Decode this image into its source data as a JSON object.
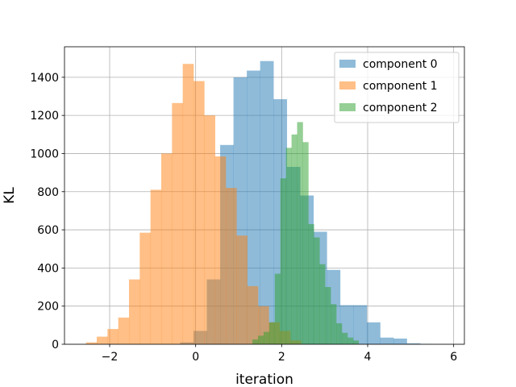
{
  "chart_data": {
    "type": "histogram",
    "xlabel": "iteration",
    "ylabel": "KL",
    "xlim": [
      -3.05,
      6.25
    ],
    "ylim": [
      0,
      1560
    ],
    "xticks": [
      -2,
      0,
      2,
      4,
      6
    ],
    "xtick_labels": [
      "−2",
      "0",
      "2",
      "4",
      "6"
    ],
    "yticks": [
      0,
      200,
      400,
      600,
      800,
      1000,
      1200,
      1400
    ],
    "ytick_labels": [
      "0",
      "200",
      "400",
      "600",
      "800",
      "1000",
      "1200",
      "1400"
    ],
    "grid": true,
    "legend_position": "top-right",
    "series": [
      {
        "name": "component 0",
        "color": "#1f77b4",
        "opacity": 0.5,
        "bins": [
          [
            -0.36,
            -0.05,
            10
          ],
          [
            -0.05,
            0.26,
            70
          ],
          [
            0.26,
            0.57,
            340
          ],
          [
            0.57,
            0.88,
            1045
          ],
          [
            0.88,
            1.19,
            1400
          ],
          [
            1.19,
            1.5,
            1435
          ],
          [
            1.5,
            1.81,
            1485
          ],
          [
            1.81,
            2.12,
            1285
          ],
          [
            2.12,
            2.43,
            930
          ],
          [
            2.43,
            2.74,
            780
          ],
          [
            2.74,
            3.05,
            590
          ],
          [
            3.05,
            3.36,
            390
          ],
          [
            3.36,
            3.67,
            205
          ],
          [
            3.67,
            3.98,
            205
          ],
          [
            3.98,
            4.29,
            115
          ],
          [
            4.29,
            4.6,
            35
          ],
          [
            4.6,
            4.91,
            30
          ],
          [
            4.91,
            5.22,
            5
          ],
          [
            5.22,
            5.53,
            2
          ]
        ]
      },
      {
        "name": "component 1",
        "color": "#ff7f0e",
        "opacity": 0.5,
        "bins": [
          [
            -2.55,
            -2.3,
            10
          ],
          [
            -2.3,
            -2.05,
            40
          ],
          [
            -2.05,
            -1.8,
            80
          ],
          [
            -1.8,
            -1.55,
            140
          ],
          [
            -1.55,
            -1.3,
            340
          ],
          [
            -1.3,
            -1.05,
            585
          ],
          [
            -1.05,
            -0.8,
            810
          ],
          [
            -0.8,
            -0.55,
            1000
          ],
          [
            -0.55,
            -0.3,
            1265
          ],
          [
            -0.3,
            -0.05,
            1470
          ],
          [
            -0.05,
            0.2,
            1380
          ],
          [
            0.2,
            0.45,
            1200
          ],
          [
            0.45,
            0.7,
            985
          ],
          [
            0.7,
            0.95,
            820
          ],
          [
            0.95,
            1.2,
            570
          ],
          [
            1.2,
            1.45,
            305
          ],
          [
            1.45,
            1.7,
            200
          ],
          [
            1.7,
            1.95,
            115
          ],
          [
            1.95,
            2.2,
            70
          ],
          [
            2.2,
            2.45,
            20
          ]
        ]
      },
      {
        "name": "component 2",
        "color": "#2ca02c",
        "opacity": 0.5,
        "bins": [
          [
            1.32,
            1.45,
            25
          ],
          [
            1.45,
            1.58,
            45
          ],
          [
            1.58,
            1.71,
            65
          ],
          [
            1.71,
            1.84,
            115
          ],
          [
            1.84,
            1.97,
            370
          ],
          [
            1.97,
            2.1,
            870
          ],
          [
            2.1,
            2.23,
            1030
          ],
          [
            2.23,
            2.36,
            1100
          ],
          [
            2.36,
            2.49,
            1165
          ],
          [
            2.49,
            2.62,
            1060
          ],
          [
            2.62,
            2.75,
            630
          ],
          [
            2.75,
            2.88,
            560
          ],
          [
            2.88,
            3.01,
            420
          ],
          [
            3.01,
            3.14,
            300
          ],
          [
            3.14,
            3.27,
            210
          ],
          [
            3.27,
            3.4,
            110
          ],
          [
            3.4,
            3.53,
            60
          ],
          [
            3.53,
            3.66,
            35
          ],
          [
            3.66,
            3.79,
            20
          ]
        ]
      }
    ]
  }
}
